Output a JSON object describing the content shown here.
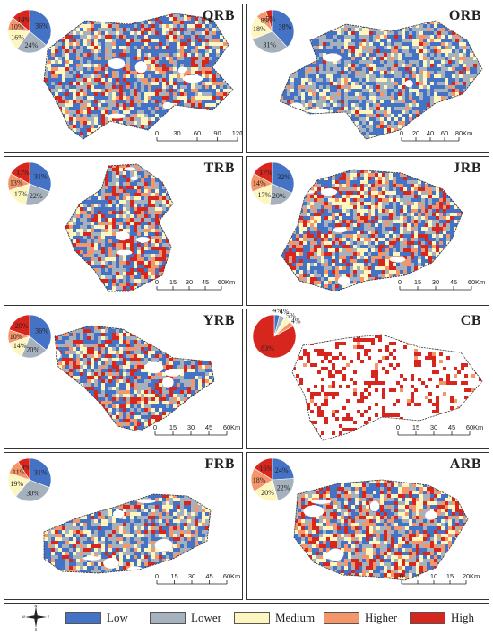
{
  "class_colors": {
    "Low": "#4472c4",
    "Lower": "#a5b2be",
    "Medium": "#fef6bf",
    "Higher": "#f4956a",
    "High": "#d7261e"
  },
  "legend": {
    "items": [
      "Low",
      "Lower",
      "Medium",
      "Higher",
      "High"
    ]
  },
  "panels": [
    {
      "id": "qrb",
      "title": "QRB",
      "pie": {
        "values": [
          36,
          24,
          16,
          10,
          14
        ],
        "labels": [
          "36%",
          "24%",
          "16%",
          "10%",
          "14%"
        ]
      },
      "scale": {
        "ticks": [
          "0",
          "30",
          "60",
          "90",
          "120"
        ],
        "unit": "Km"
      },
      "map_mix": [
        0.36,
        0.24,
        0.16,
        0.1,
        0.14
      ]
    },
    {
      "id": "orb",
      "title": "ORB",
      "pie": {
        "values": [
          38,
          31,
          18,
          8,
          5
        ],
        "labels": [
          "38%",
          "31%",
          "18%",
          "8%",
          "5%"
        ]
      },
      "scale": {
        "ticks": [
          "0",
          "20",
          "40",
          "60",
          "80"
        ],
        "unit": "Km"
      },
      "map_mix": [
        0.38,
        0.31,
        0.18,
        0.08,
        0.05
      ]
    },
    {
      "id": "trb",
      "title": "TRB",
      "pie": {
        "values": [
          31,
          22,
          17,
          13,
          17
        ],
        "labels": [
          "31%",
          "22%",
          "17%",
          "13%",
          "17%"
        ]
      },
      "scale": {
        "ticks": [
          "0",
          "15",
          "30",
          "45",
          "60"
        ],
        "unit": "Km"
      },
      "map_mix": [
        0.31,
        0.22,
        0.17,
        0.13,
        0.17
      ]
    },
    {
      "id": "jrb",
      "title": "JRB",
      "pie": {
        "values": [
          32,
          20,
          17,
          14,
          17
        ],
        "labels": [
          "32%",
          "20%",
          "17%",
          "14%",
          "17%"
        ]
      },
      "scale": {
        "ticks": [
          "0",
          "15",
          "30",
          "45",
          "60"
        ],
        "unit": "Km"
      },
      "map_mix": [
        0.32,
        0.2,
        0.17,
        0.14,
        0.17
      ]
    },
    {
      "id": "yrb",
      "title": "YRB",
      "pie": {
        "values": [
          36,
          20,
          14,
          10,
          20
        ],
        "labels": [
          "36%",
          "20%",
          "14%",
          "10%",
          "20%"
        ]
      },
      "scale": {
        "ticks": [
          "0",
          "15",
          "30",
          "45",
          "60"
        ],
        "unit": "Km"
      },
      "map_mix": [
        0.36,
        0.2,
        0.14,
        0.1,
        0.2
      ]
    },
    {
      "id": "cb",
      "title": "CB",
      "pie": {
        "values": [
          4,
          4,
          5,
          4,
          83
        ],
        "labels": [
          "4%",
          "4%",
          "5%",
          "4%",
          "83%"
        ]
      },
      "scale": {
        "ticks": [
          "0",
          "15",
          "30",
          "45",
          "60"
        ],
        "unit": "Km"
      },
      "map_mix": [
        0.04,
        0.04,
        0.05,
        0.04,
        0.83
      ]
    },
    {
      "id": "frb",
      "title": "FRB",
      "pie": {
        "values": [
          31,
          30,
          19,
          11,
          9
        ],
        "labels": [
          "31%",
          "30%",
          "19%",
          "11%",
          "9%"
        ]
      },
      "scale": {
        "ticks": [
          "0",
          "15",
          "30",
          "45",
          "60"
        ],
        "unit": "Km"
      },
      "map_mix": [
        0.31,
        0.3,
        0.19,
        0.11,
        0.09
      ]
    },
    {
      "id": "arb",
      "title": "ARB",
      "pie": {
        "values": [
          24,
          22,
          20,
          18,
          16
        ],
        "labels": [
          "24%",
          "22%",
          "20%",
          "18%",
          "16%"
        ]
      },
      "scale": {
        "ticks": [
          "0",
          "5",
          "10",
          "15",
          "20"
        ],
        "unit": "Km"
      },
      "map_mix": [
        0.24,
        0.22,
        0.2,
        0.18,
        0.16
      ]
    }
  ],
  "compass": {
    "n": "N",
    "s": "S",
    "e": "E",
    "w": "W"
  }
}
